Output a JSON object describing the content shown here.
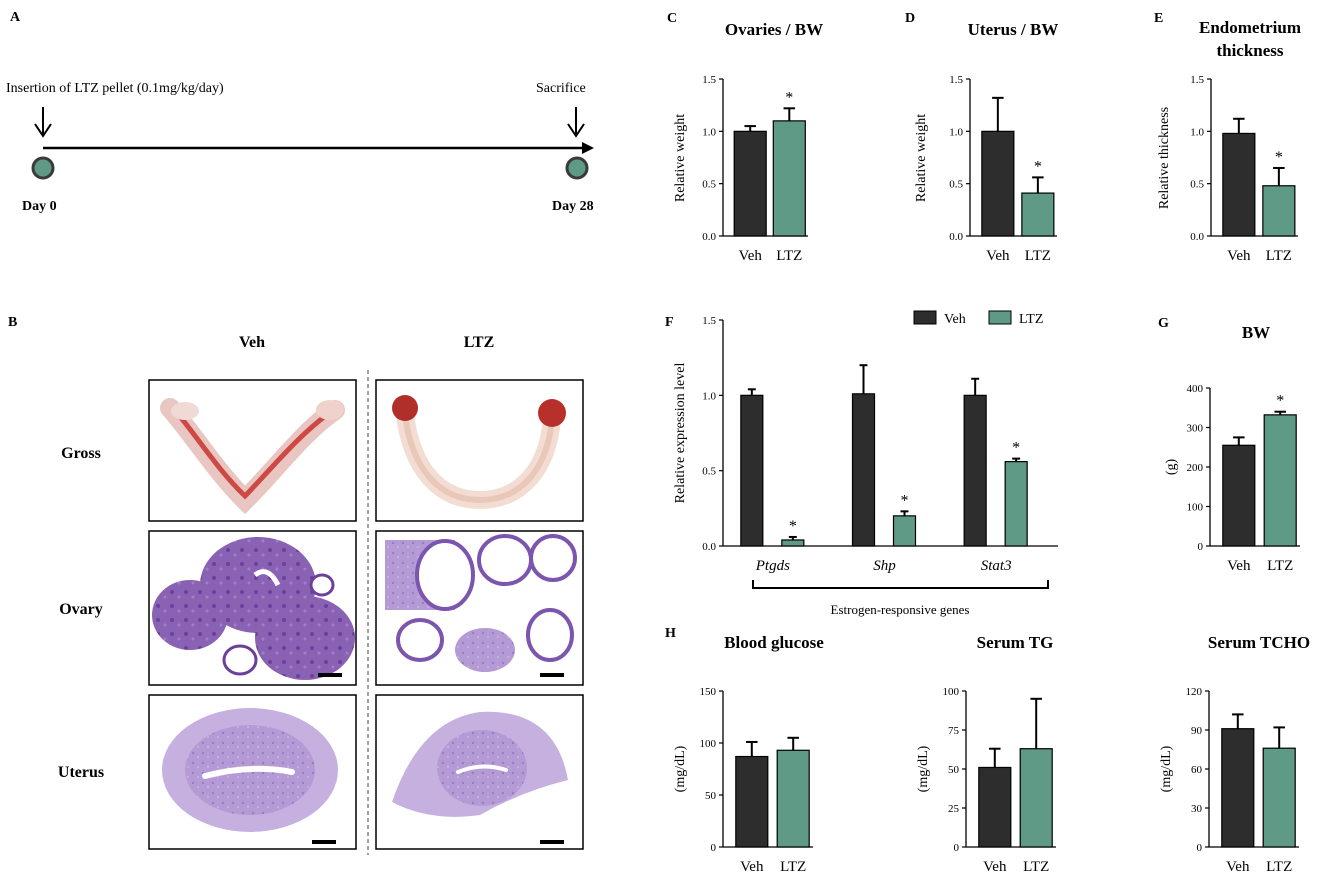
{
  "colors": {
    "veh": "#2d2d2d",
    "ltz": "#5f9a86",
    "dot": "#5f9a86"
  },
  "panel_a": {
    "letter": "A",
    "insertion_label": "Insertion of LTZ pellet (0.1mg/kg/day)",
    "sacrifice_label": "Sacrifice",
    "day_start": "Day 0",
    "day_end": "Day 28"
  },
  "panel_b": {
    "letter": "B",
    "col_veh": "Veh",
    "col_ltz": "LTZ",
    "row_gross": "Gross",
    "row_ovary": "Ovary",
    "row_uterus": "Uterus"
  },
  "chart_data": [
    {
      "id": "C",
      "letter": "C",
      "type": "bar",
      "title": "Ovaries / BW",
      "ylabel": "Relative weight",
      "categories": [
        "Veh",
        "LTZ"
      ],
      "values": [
        1.0,
        1.1
      ],
      "errors": [
        0.05,
        0.12
      ],
      "ylim": [
        0,
        1.5
      ],
      "yticks": [
        "0.0",
        "0.5",
        "1.0",
        "1.5"
      ],
      "ytick_values": [
        0,
        0.5,
        1.0,
        1.5
      ],
      "sig": [
        "",
        "*"
      ]
    },
    {
      "id": "D",
      "letter": "D",
      "type": "bar",
      "title": "Uterus / BW",
      "ylabel": "Relative weight",
      "categories": [
        "Veh",
        "LTZ"
      ],
      "values": [
        1.0,
        0.41
      ],
      "errors": [
        0.32,
        0.15
      ],
      "ylim": [
        0,
        1.5
      ],
      "yticks": [
        "0.0",
        "0.5",
        "1.0",
        "1.5"
      ],
      "ytick_values": [
        0,
        0.5,
        1.0,
        1.5
      ],
      "sig": [
        "",
        "*"
      ]
    },
    {
      "id": "E",
      "letter": "E",
      "type": "bar",
      "title": "Endometrium thickness",
      "title_lines": [
        "Endometrium",
        "thickness"
      ],
      "ylabel": "Relative thickness",
      "categories": [
        "Veh",
        "LTZ"
      ],
      "values": [
        0.98,
        0.48
      ],
      "errors": [
        0.14,
        0.17
      ],
      "ylim": [
        0,
        1.5
      ],
      "yticks": [
        "0.0",
        "0.5",
        "1.0",
        "1.5"
      ],
      "ytick_values": [
        0,
        0.5,
        1.0,
        1.5
      ],
      "sig": [
        "",
        "*"
      ]
    },
    {
      "id": "F",
      "letter": "F",
      "type": "bar",
      "title": "",
      "ylabel": "Relative expression level",
      "categories": [
        "Ptgds",
        "Shp",
        "Stat3"
      ],
      "series": [
        {
          "name": "Veh",
          "values": [
            1.0,
            1.01,
            1.0
          ],
          "errors": [
            0.04,
            0.19,
            0.11
          ]
        },
        {
          "name": "LTZ",
          "values": [
            0.04,
            0.2,
            0.56
          ],
          "errors": [
            0.02,
            0.03,
            0.02
          ]
        }
      ],
      "ylim": [
        0,
        1.5
      ],
      "yticks": [
        "0.0",
        "0.5",
        "1.0",
        "1.5"
      ],
      "ytick_values": [
        0,
        0.5,
        1.0,
        1.5
      ],
      "sig_ltz": [
        "*",
        "*",
        "*"
      ],
      "group_label": "Estrogen-responsive genes",
      "legend": [
        "Veh",
        "LTZ"
      ],
      "legend_position": "top-right"
    },
    {
      "id": "G",
      "letter": "G",
      "type": "bar",
      "title": "BW",
      "ylabel": "(g)",
      "categories": [
        "Veh",
        "LTZ"
      ],
      "values": [
        255,
        332
      ],
      "errors": [
        20,
        8
      ],
      "ylim": [
        0,
        400
      ],
      "yticks": [
        "0",
        "100",
        "200",
        "300",
        "400"
      ],
      "ytick_values": [
        0,
        100,
        200,
        300,
        400
      ],
      "sig": [
        "",
        "*"
      ]
    },
    {
      "id": "H1",
      "letter": "H",
      "type": "bar",
      "title": "Blood glucose",
      "ylabel": "(mg/dL)",
      "categories": [
        "Veh",
        "LTZ"
      ],
      "values": [
        87,
        93
      ],
      "errors": [
        14,
        12
      ],
      "ylim": [
        0,
        150
      ],
      "yticks": [
        "0",
        "50",
        "100",
        "150"
      ],
      "ytick_values": [
        0,
        50,
        100,
        150
      ],
      "sig": [
        "",
        ""
      ]
    },
    {
      "id": "H2",
      "letter": "",
      "type": "bar",
      "title": "Serum TG",
      "ylabel": "(mg/dL)",
      "categories": [
        "Veh",
        "LTZ"
      ],
      "values": [
        51,
        63
      ],
      "errors": [
        12,
        32
      ],
      "ylim": [
        0,
        100
      ],
      "yticks": [
        "0",
        "25",
        "50",
        "75",
        "100"
      ],
      "ytick_values": [
        0,
        25,
        50,
        75,
        100
      ],
      "sig": [
        "",
        ""
      ]
    },
    {
      "id": "H3",
      "letter": "",
      "type": "bar",
      "title": "Serum TCHO",
      "ylabel": "(mg/dL)",
      "categories": [
        "Veh",
        "LTZ"
      ],
      "values": [
        91,
        76
      ],
      "errors": [
        11,
        16
      ],
      "ylim": [
        0,
        120
      ],
      "yticks": [
        "0",
        "30",
        "60",
        "90",
        "120"
      ],
      "ytick_values": [
        0,
        30,
        60,
        90,
        120
      ],
      "sig": [
        "",
        ""
      ]
    }
  ]
}
